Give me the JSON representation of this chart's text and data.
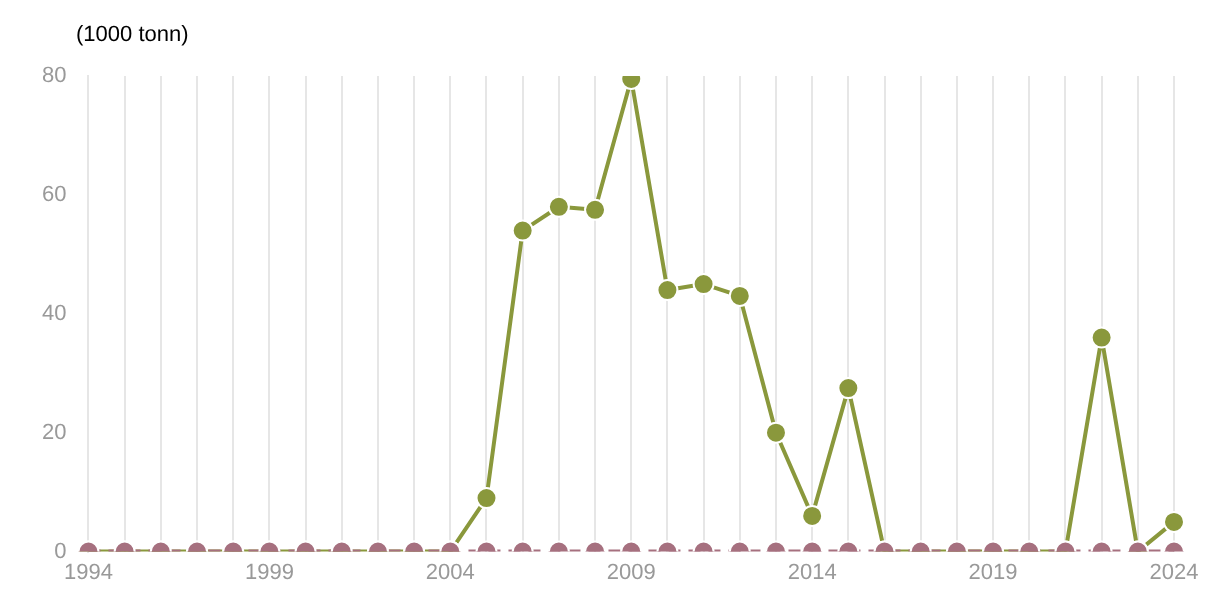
{
  "chart_data": {
    "type": "line",
    "ylabel": "(1000 tonn)",
    "categories": [
      "1994",
      null,
      null,
      null,
      null,
      "1999",
      null,
      null,
      null,
      null,
      "2004",
      null,
      null,
      null,
      null,
      "2009",
      null,
      null,
      null,
      null,
      "2014",
      null,
      null,
      null,
      null,
      "2019",
      null,
      null,
      null,
      null,
      "2024"
    ],
    "series": [
      {
        "color": "#a6707f",
        "line_style": "dashed",
        "values": [
          0,
          0,
          0,
          0,
          0,
          0,
          0,
          0,
          0,
          0,
          0,
          0,
          0,
          0,
          0,
          0,
          0,
          0,
          0,
          0,
          0,
          0,
          0,
          0,
          0,
          0,
          0,
          0,
          0,
          0,
          0
        ]
      },
      {
        "color": "#8a983c",
        "line_style": "solid",
        "values": [
          0,
          0,
          0,
          0,
          0,
          0,
          0,
          0,
          0,
          0,
          0,
          9,
          54,
          58,
          57.5,
          79.5,
          44,
          45,
          43,
          20,
          6,
          27.5,
          0,
          0,
          0,
          0,
          0,
          0,
          36,
          0,
          5
        ]
      }
    ],
    "ylim": [
      0,
      80
    ],
    "yticks": [
      0,
      20,
      40,
      60,
      80
    ],
    "grid": "x",
    "marker": "circle",
    "legend": false
  }
}
